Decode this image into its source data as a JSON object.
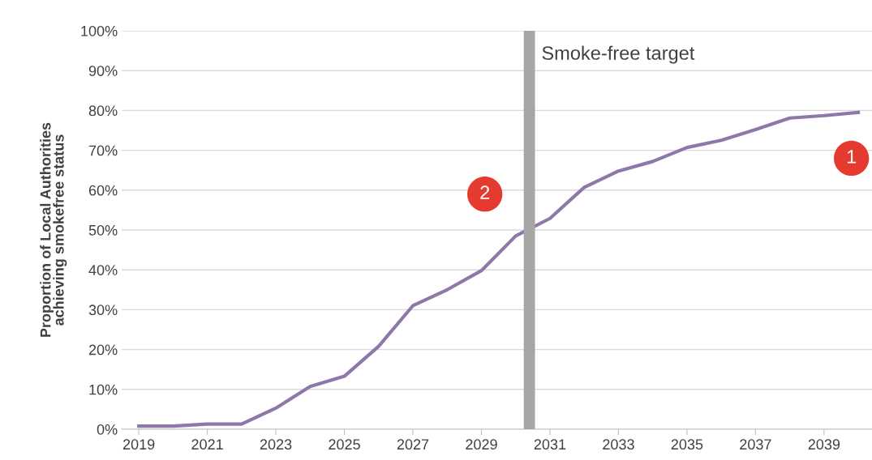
{
  "chart_data": {
    "type": "line",
    "ylabel": "Proportion of Local Authorities\nachieving smokefree status",
    "x": [
      2019,
      2020,
      2021,
      2022,
      2023,
      2024,
      2025,
      2026,
      2027,
      2028,
      2029,
      2030,
      2031,
      2032,
      2033,
      2034,
      2035,
      2036,
      2037,
      2038,
      2039,
      2040
    ],
    "series": [
      {
        "color": "#8e78aa",
        "values": [
          0.8,
          0.8,
          1.3,
          1.3,
          5.3,
          10.7,
          13.3,
          20.8,
          31,
          35,
          39.8,
          48.5,
          52.9,
          60.7,
          64.8,
          67.2,
          70.7,
          72.5,
          75.2,
          78.1,
          78.7,
          79.5
        ]
      }
    ],
    "xlim": [
      2018.5,
      2040.4
    ],
    "xticks": [
      2019,
      2021,
      2023,
      2025,
      2027,
      2029,
      2031,
      2033,
      2035,
      2037,
      2039
    ],
    "ylim": [
      0,
      100
    ],
    "yticks": [
      {
        "value": 0,
        "label": "0%"
      },
      {
        "value": 10,
        "label": "10%"
      },
      {
        "value": 20,
        "label": "20%"
      },
      {
        "value": 30,
        "label": "30%"
      },
      {
        "value": 40,
        "label": "40%"
      },
      {
        "value": 50,
        "label": "50%"
      },
      {
        "value": 60,
        "label": "60%"
      },
      {
        "value": 70,
        "label": "70%"
      },
      {
        "value": 80,
        "label": "80%"
      },
      {
        "value": 90,
        "label": "90%"
      },
      {
        "value": 100,
        "label": "100%"
      }
    ],
    "ref_lines": [
      {
        "axis": "x",
        "value": 2030.4,
        "label": "Smoke-free target",
        "color": "#a6a6a6"
      }
    ],
    "annotations": [
      {
        "text": "1",
        "x": 2039.8,
        "y": 68
      },
      {
        "text": "2",
        "x": 2029.1,
        "y": 59
      }
    ],
    "grid": "y",
    "legend": false,
    "marker": "none",
    "line_style": "solid"
  }
}
